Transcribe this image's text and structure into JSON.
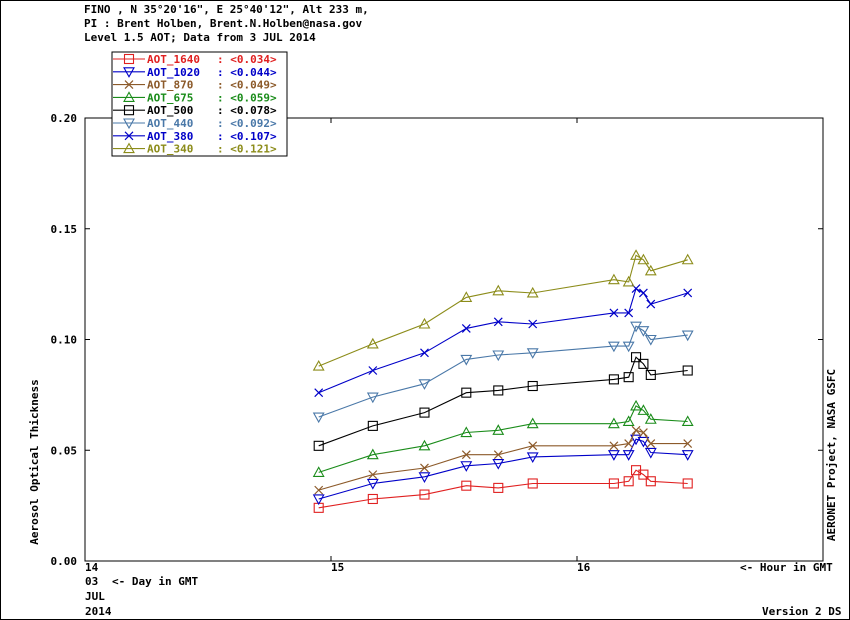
{
  "header": {
    "site_line": "FINO , N 35°20'16\", E 25°40'12\", Alt 233 m,",
    "pi_line": "PI : Brent Holben, Brent.N.Holben@nasa.gov",
    "level_line": "Level 1.5 AOT; Data from 3 JUL 2014"
  },
  "bottom": {
    "day_label": "<- Day in GMT",
    "hour_label": "<- Hour in GMT",
    "day_line": "03",
    "month_line": "JUL",
    "year_line": "2014",
    "version": "Version 2 DS"
  },
  "chart_data": {
    "type": "line",
    "ylabel": "Aerosol Optical Thickness",
    "right_label": "AERONET Project, NASA GSFC",
    "xlim": [
      14,
      17
    ],
    "ylim": [
      0.0,
      0.2
    ],
    "y_ticks": [
      0.0,
      0.05,
      0.1,
      0.15,
      0.2
    ],
    "y_tick_labels": [
      "0.00",
      "0.05",
      "0.10",
      "0.15",
      "0.20"
    ],
    "x_ticks": [
      14,
      15,
      16
    ],
    "x_tick_labels": [
      "14",
      "15",
      "16"
    ],
    "legend_position": "top-left",
    "x": [
      14.95,
      15.17,
      15.38,
      15.55,
      15.68,
      15.82,
      16.15,
      16.21,
      16.24,
      16.27,
      16.3,
      16.45
    ],
    "series": [
      {
        "name": "AOT_1640",
        "mean_label": ": <0.034>",
        "color": "#e02020",
        "marker": "square",
        "values": [
          0.024,
          0.028,
          0.03,
          0.034,
          0.033,
          0.035,
          0.035,
          0.036,
          0.041,
          0.039,
          0.036,
          0.035
        ]
      },
      {
        "name": "AOT_1020",
        "mean_label": ": <0.044>",
        "color": "#0000c8",
        "marker": "triangle-down",
        "values": [
          0.028,
          0.035,
          0.038,
          0.043,
          0.044,
          0.047,
          0.048,
          0.048,
          0.055,
          0.054,
          0.049,
          0.048
        ]
      },
      {
        "name": "AOT_870",
        "mean_label": ": <0.049>",
        "color": "#8c5a2a",
        "marker": "x",
        "values": [
          0.032,
          0.039,
          0.042,
          0.048,
          0.048,
          0.052,
          0.052,
          0.053,
          0.059,
          0.058,
          0.053,
          0.053
        ]
      },
      {
        "name": "AOT_675",
        "mean_label": ": <0.059>",
        "color": "#1a8c1a",
        "marker": "triangle-up",
        "values": [
          0.04,
          0.048,
          0.052,
          0.058,
          0.059,
          0.062,
          0.062,
          0.063,
          0.07,
          0.068,
          0.064,
          0.063
        ]
      },
      {
        "name": "AOT_500",
        "mean_label": ": <0.078>",
        "color": "#000000",
        "marker": "square",
        "values": [
          0.052,
          0.061,
          0.067,
          0.076,
          0.077,
          0.079,
          0.082,
          0.083,
          0.092,
          0.089,
          0.084,
          0.086
        ]
      },
      {
        "name": "AOT_440",
        "mean_label": ": <0.092>",
        "color": "#4a78a8",
        "marker": "triangle-down",
        "values": [
          0.065,
          0.074,
          0.08,
          0.091,
          0.093,
          0.094,
          0.097,
          0.097,
          0.106,
          0.104,
          0.1,
          0.102
        ]
      },
      {
        "name": "AOT_380",
        "mean_label": ": <0.107>",
        "color": "#0000c8",
        "marker": "x",
        "values": [
          0.076,
          0.086,
          0.094,
          0.105,
          0.108,
          0.107,
          0.112,
          0.112,
          0.123,
          0.121,
          0.116,
          0.121
        ]
      },
      {
        "name": "AOT_340",
        "mean_label": ": <0.121>",
        "color": "#8c8c1a",
        "marker": "triangle-up",
        "values": [
          0.088,
          0.098,
          0.107,
          0.119,
          0.122,
          0.121,
          0.127,
          0.126,
          0.138,
          0.136,
          0.131,
          0.136
        ]
      }
    ]
  }
}
